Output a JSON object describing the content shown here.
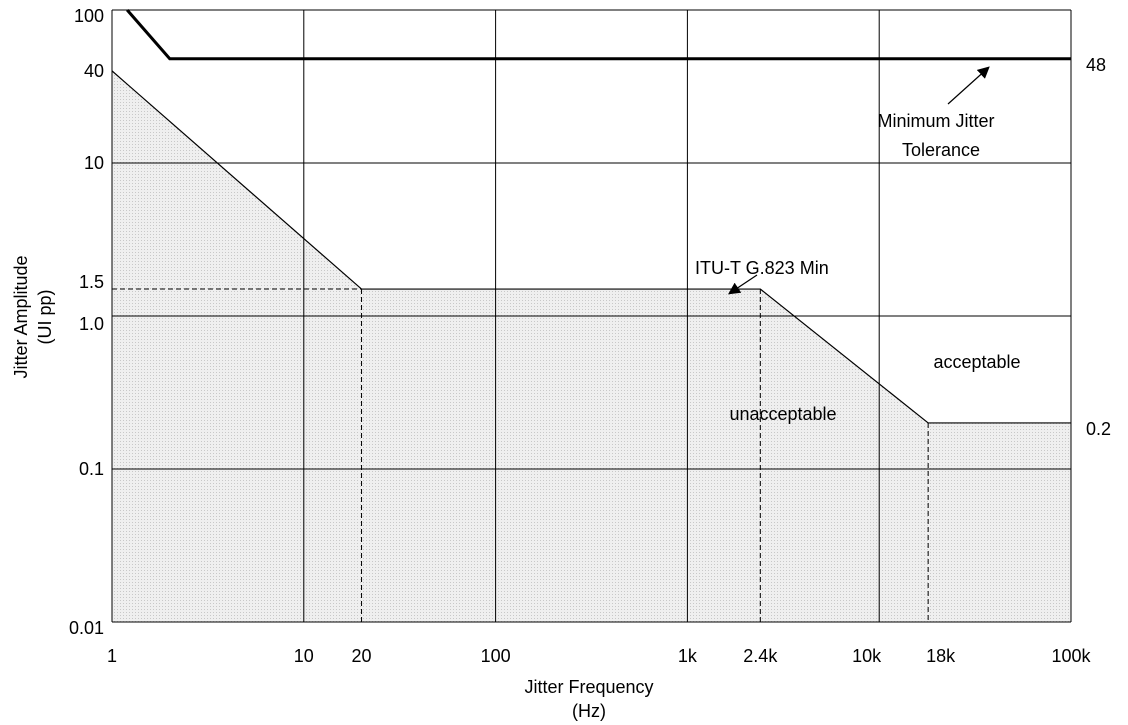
{
  "chart_data": {
    "type": "line",
    "x_scale": "log",
    "y_scale": "log",
    "xlim": [
      1,
      100000
    ],
    "ylim": [
      0.01,
      100
    ],
    "grid": true,
    "x_ticks": [
      {
        "value": 1,
        "label": "1"
      },
      {
        "value": 10,
        "label": "10"
      },
      {
        "value": 100,
        "label": "100"
      },
      {
        "value": 1000,
        "label": "1k"
      },
      {
        "value": 10000,
        "label": "10k"
      },
      {
        "value": 100000,
        "label": "100k"
      }
    ],
    "x_extra_ticks": [
      {
        "value": 20,
        "label": "20"
      },
      {
        "value": 2400,
        "label": "2.4k"
      },
      {
        "value": 18000,
        "label": "18k"
      }
    ],
    "y_ticks": [
      {
        "value": 0.01,
        "label": "0.01"
      },
      {
        "value": 0.1,
        "label": "0.1"
      },
      {
        "value": 1,
        "label": "1.0"
      },
      {
        "value": 10,
        "label": "10"
      },
      {
        "value": 100,
        "label": "100"
      }
    ],
    "y_extra_ticks": [
      {
        "value": 1.5,
        "label": "1.5"
      },
      {
        "value": 40,
        "label": "40"
      }
    ],
    "xlabel_line1": "Jitter Frequency",
    "xlabel_line2": "(Hz)",
    "ylabel_line1": "Jitter Amplitude",
    "ylabel_line2": "(UI pp)",
    "series": [
      {
        "name": "ITU-T G.823 Min",
        "style": "thin",
        "x": [
          1,
          20,
          2400,
          18000,
          100000
        ],
        "y": [
          40,
          1.5,
          1.5,
          0.2,
          0.2
        ]
      },
      {
        "name": "Minimum Jitter Tolerance",
        "style": "bold",
        "x": [
          1.2,
          2,
          100000
        ],
        "y": [
          100,
          48,
          48
        ]
      }
    ],
    "right_labels": [
      {
        "value": 48,
        "label": "48"
      },
      {
        "value": 0.2,
        "label": "0.2"
      }
    ],
    "region_labels": {
      "unacceptable": "unacceptable",
      "acceptable": "acceptable"
    },
    "annotations": {
      "itu_label": "ITU-T G.823 Min",
      "min_tol_line1": "Minimum Jitter",
      "min_tol_line2": "Tolerance"
    },
    "colors": {
      "shade": "#ececec",
      "line": "#000000",
      "grid": "#000000"
    }
  }
}
